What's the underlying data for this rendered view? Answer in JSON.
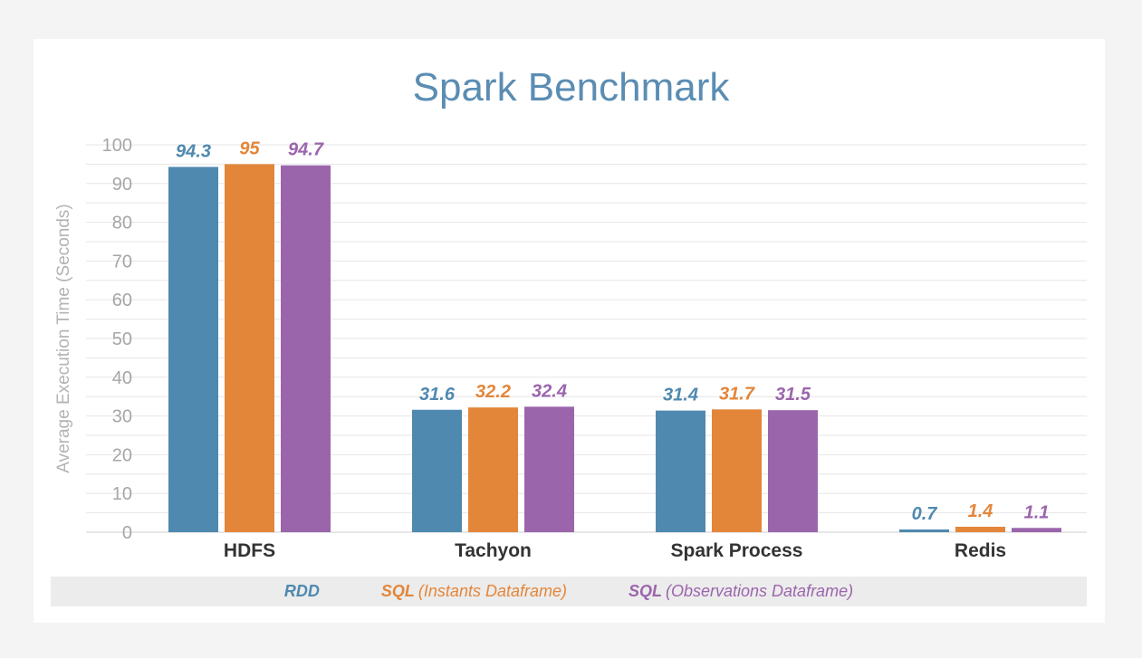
{
  "chart_data": {
    "type": "bar",
    "title": "Spark Benchmark",
    "xlabel": "",
    "ylabel": "Average Execution Time (Seconds)",
    "ylim": [
      0,
      100
    ],
    "yticks": [
      0,
      10,
      20,
      30,
      40,
      50,
      60,
      70,
      80,
      90,
      100
    ],
    "grid": true,
    "legend_position": "bottom",
    "categories": [
      "HDFS",
      "Tachyon",
      "Spark Process",
      "Redis"
    ],
    "series": [
      {
        "name": "RDD",
        "bold": "RDD",
        "desc": "",
        "color": "#4f89b0",
        "values": [
          94.3,
          31.6,
          31.4,
          0.7
        ],
        "labels": [
          "94.3",
          "31.6",
          "31.4",
          "0.7"
        ]
      },
      {
        "name": "SQL (Instants Dataframe)",
        "bold": "SQL",
        "desc": "(Instants Dataframe)",
        "color": "#e3863a",
        "values": [
          95,
          32.2,
          31.7,
          1.4
        ],
        "labels": [
          "95",
          "32.2",
          "31.7",
          "1.4"
        ]
      },
      {
        "name": "SQL (Observations Dataframe)",
        "bold": "SQL",
        "desc": "(Observations Dataframe)",
        "color": "#9b65ac",
        "values": [
          94.7,
          32.4,
          31.5,
          1.1
        ],
        "labels": [
          "94.7",
          "32.4",
          "31.5",
          "1.1"
        ]
      }
    ]
  }
}
